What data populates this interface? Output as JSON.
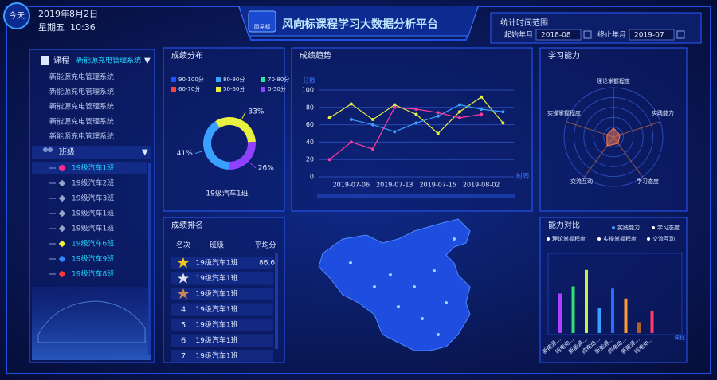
{
  "header": {
    "today": "今天",
    "date": "2019年8月2日",
    "weekday": "星期五",
    "time": "10:36",
    "logo": "简易标",
    "title": "风向标课程学习大数据分析平台"
  },
  "time_range": {
    "title": "统计时间范围",
    "start_label": "起始年月",
    "start": "2018-08",
    "end_label": "终止年月",
    "end": "2019-07"
  },
  "sidebar": {
    "course_label": "课程",
    "course_value": "新能源充电管理系统",
    "courses": [
      "新能源充电管理系统",
      "新能源充电管理系统",
      "新能源充电管理系统",
      "新能源充电管理系统",
      "新能源充电管理系统"
    ],
    "class_label": "班级",
    "classes": [
      {
        "name": "19级汽车1班",
        "color": "#ff2d8a",
        "shape": "circle",
        "active": true
      },
      {
        "name": "19级汽车2班",
        "color": "#9aa6c8",
        "shape": "diamond",
        "active": false
      },
      {
        "name": "19级汽车3班",
        "color": "#9aa6c8",
        "shape": "diamond",
        "active": false
      },
      {
        "name": "19级汽车1班",
        "color": "#9aa6c8",
        "shape": "diamond",
        "active": false
      },
      {
        "name": "19级汽车1班",
        "color": "#9aa6c8",
        "shape": "diamond",
        "active": false
      },
      {
        "name": "19级汽车6班",
        "color": "#f2f23a",
        "shape": "diamond",
        "active": true
      },
      {
        "name": "19级汽车9班",
        "color": "#2e8bff",
        "shape": "diamond",
        "active": true
      },
      {
        "name": "19级汽车8班",
        "color": "#ff3838",
        "shape": "diamond",
        "active": true
      }
    ]
  },
  "distribution": {
    "title": "成绩分布",
    "type": "pie",
    "subtitle": "19级汽车1班",
    "categories": [
      "90-100分",
      "80-90分",
      "70-80分",
      "60-70分",
      "50-60分",
      "0-50分"
    ],
    "colors": [
      "#2050ff",
      "#3aa0ff",
      "#30e0a0",
      "#ff4040",
      "#e8f040",
      "#9040ff"
    ],
    "values": [
      0,
      41,
      0,
      0,
      33,
      26
    ],
    "value_labels": [
      null,
      "41%",
      null,
      null,
      "33%",
      "26%"
    ]
  },
  "trend": {
    "title": "成绩趋势",
    "type": "line",
    "ylabel": "分数",
    "xlabel": "时间",
    "categories": [
      null,
      "2019-07-06",
      null,
      "2019-07-13",
      null,
      "2019-07-15",
      null,
      "2019-08-02",
      null
    ],
    "ylim": [
      0,
      100
    ],
    "yticks": [
      0,
      20,
      40,
      60,
      80,
      100
    ],
    "grid": true,
    "series": [
      {
        "color": "#e8f040",
        "values": [
          68,
          84,
          66,
          83,
          72,
          50,
          75,
          92,
          62
        ]
      },
      {
        "color": "#3aa0ff",
        "values": [
          null,
          66,
          60,
          52,
          62,
          70,
          83,
          78,
          75
        ]
      },
      {
        "color": "#ff3aa0",
        "values": [
          20,
          40,
          32,
          80,
          78,
          74,
          68,
          72,
          null
        ]
      }
    ]
  },
  "ability": {
    "title": "学习能力",
    "type": "radar",
    "rlim": [
      0,
      100
    ],
    "categories": [
      "理论掌握程度",
      "实践能力",
      "学习态度",
      "交流互动",
      "实操掌握程度"
    ],
    "values": [
      18,
      14,
      16,
      22,
      14
    ],
    "color": "#ff7a50"
  },
  "ranking": {
    "title": "成绩排名",
    "headers": [
      "名次",
      "班级",
      "平均分"
    ],
    "rows": [
      {
        "medal": "#f5c518",
        "class": "19级汽车1班",
        "score": "86.6"
      },
      {
        "medal": "#dfe3ee",
        "class": "19级汽车1班"
      },
      {
        "medal": "#c98a5a",
        "class": "19级汽车1班"
      },
      {
        "rank": "4",
        "class": "19级汽车1班"
      },
      {
        "rank": "5",
        "class": "19级汽车1班"
      },
      {
        "rank": "6",
        "class": "19级汽车1班"
      },
      {
        "rank": "7",
        "class": "19级汽车1班"
      }
    ]
  },
  "comparison": {
    "title": "能力对比",
    "type": "bar",
    "xlabel": "课程",
    "legend": [
      "实践能力",
      "学习态度",
      "理论掌握程度",
      "实操掌握程度",
      "交流互动"
    ],
    "legend_colors": [
      "#3aa0ff",
      "#ffffff",
      "#ffffff",
      "#ffffff",
      "#ffffff"
    ],
    "categories": [
      "新能源...",
      "纯电动...",
      "新能源...",
      "纯电动...",
      "新能源...",
      "纯电动...",
      "新能源...",
      "纯电动..."
    ],
    "values": [
      55,
      65,
      88,
      35,
      62,
      48,
      15,
      30
    ],
    "colors": [
      "#b040ff",
      "#30e070",
      "#c8f040",
      "#3aa0ff",
      "#2e6bff",
      "#ff9a30",
      "#b0602a",
      "#ff3a70"
    ]
  }
}
